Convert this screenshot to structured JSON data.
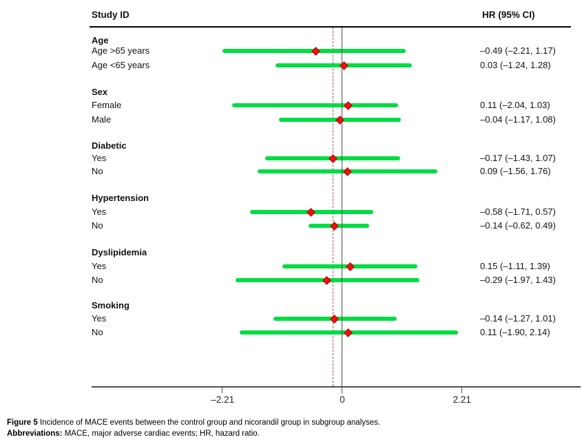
{
  "header": {
    "left": "Study ID",
    "right": "HR (95% CI)"
  },
  "caption": {
    "line1_bold": "Figure 5",
    "line1_rest": " Incidence of MACE events between the control group and nicorandil group in subgroup analyses.",
    "line2_bold": "Abbreviations:",
    "line2_rest": " MACE, major adverse cardiac events; HR, hazard ratio."
  },
  "chart_data": {
    "type": "scatter",
    "subtype": "forest-plot",
    "title": "",
    "xlabel": "",
    "ylabel": "",
    "xlim": [
      -4.67,
      4.4
    ],
    "grid": false,
    "axis": {
      "ticks": [
        {
          "value": -2.21,
          "label": "–2.21"
        },
        {
          "value": 0,
          "label": "0"
        },
        {
          "value": 2.21,
          "label": "2.21"
        }
      ]
    },
    "reference_lines": {
      "solid_value": 0,
      "dashed_value": -0.16
    },
    "colors": {
      "ci_bar": "#00dd44",
      "marker": "#ee1111",
      "dashed_line": "#9a4b4b",
      "zero_line": "#4d4d4d"
    },
    "groups": [
      {
        "label": "Age",
        "rows": [
          {
            "label": "Age >65 years",
            "est": -0.49,
            "lo": -2.21,
            "hi": 1.17,
            "hr_text": "–0.49 (–2.21, 1.17)"
          },
          {
            "label": "Age <65 years",
            "est": 0.03,
            "lo": -1.24,
            "hi": 1.28,
            "hr_text": "0.03 (–1.24, 1.28)"
          }
        ]
      },
      {
        "label": "Sex",
        "rows": [
          {
            "label": "Female",
            "est": 0.11,
            "lo": -2.04,
            "hi": 1.03,
            "hr_text": "0.11 (–2.04, 1.03)"
          },
          {
            "label": "Male",
            "est": -0.04,
            "lo": -1.17,
            "hi": 1.08,
            "hr_text": "–0.04 (–1.17, 1.08)"
          }
        ]
      },
      {
        "label": "Diabetic",
        "rows": [
          {
            "label": "Yes",
            "est": -0.17,
            "lo": -1.43,
            "hi": 1.07,
            "hr_text": "–0.17 (–1.43, 1.07)"
          },
          {
            "label": "No",
            "est": 0.09,
            "lo": -1.56,
            "hi": 1.76,
            "hr_text": "0.09 (–1.56, 1.76)"
          }
        ]
      },
      {
        "label": "Hypertension",
        "rows": [
          {
            "label": "Yes",
            "est": -0.58,
            "lo": -1.71,
            "hi": 0.57,
            "hr_text": "–0.58 (–1.71, 0.57)"
          },
          {
            "label": "No",
            "est": -0.14,
            "lo": -0.62,
            "hi": 0.49,
            "hr_text": "–0.14 (–0.62, 0.49)"
          }
        ]
      },
      {
        "label": "Dyslipidemia",
        "rows": [
          {
            "label": "Yes",
            "est": 0.15,
            "lo": -1.11,
            "hi": 1.39,
            "hr_text": "0.15 (–1.11, 1.39)"
          },
          {
            "label": "No",
            "est": -0.29,
            "lo": -1.97,
            "hi": 1.43,
            "hr_text": "–0.29 (–1.97, 1.43)"
          }
        ]
      },
      {
        "label": "Smoking",
        "rows": [
          {
            "label": "Yes",
            "est": -0.14,
            "lo": -1.27,
            "hi": 1.01,
            "hr_text": "–0.14 (–1.27, 1.01)"
          },
          {
            "label": "No",
            "est": 0.11,
            "lo": -1.9,
            "hi": 2.14,
            "hr_text": "0.11 (–1.90, 2.14)"
          }
        ]
      }
    ]
  }
}
